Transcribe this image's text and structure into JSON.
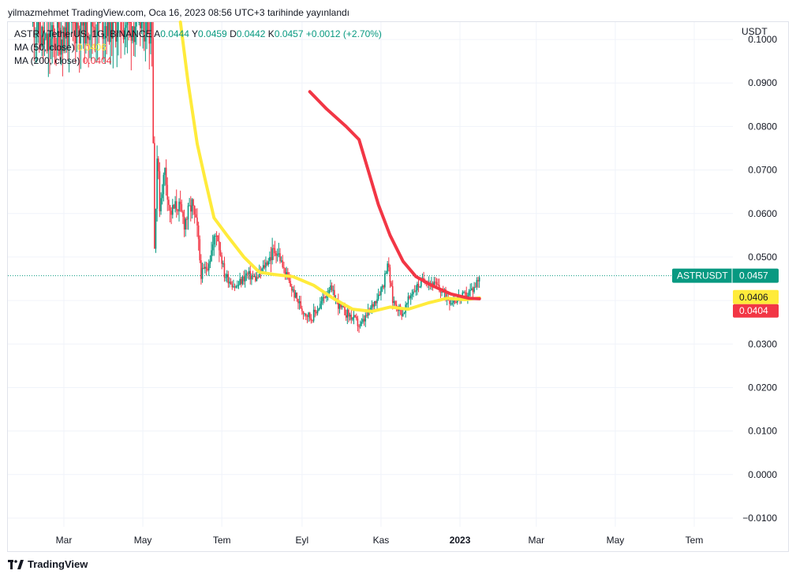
{
  "header": {
    "published": "yilmazmehmet TradingView.com, Oca 16, 2023 08:56 UTC+3 tarihinde yayınlandı"
  },
  "legend": {
    "symbol": "ASTR / TetherUS, 1G, BINANCE",
    "o_label": "A",
    "o_value": "0.0444",
    "h_label": "Y",
    "h_value": "0.0459",
    "l_label": "D",
    "l_value": "0.0442",
    "c_label": "K",
    "c_value": "0.0457",
    "change": "+0.0012 (+2.70%)",
    "ma50_label": "MA (50, close)",
    "ma50_value": "0.0406",
    "ma200_label": "MA (200, close)",
    "ma200_value": "0.0404"
  },
  "footer": {
    "brand": "TradingView"
  },
  "colors": {
    "up": "#089981",
    "down": "#f23645",
    "ma50": "#ffeb3b",
    "ma200": "#f23645",
    "grid": "#f0f3fa",
    "text": "#131722"
  },
  "chart_data": {
    "type": "line",
    "currency": "USDT",
    "ylim": [
      -0.012,
      0.104
    ],
    "y_ticks": [
      "0.1000",
      "0.0900",
      "0.0800",
      "0.0700",
      "0.0600",
      "0.0500",
      "0.0400",
      "0.0300",
      "0.0200",
      "0.0100",
      "0.0000",
      "−0.0100"
    ],
    "y_tick_values": [
      0.1,
      0.09,
      0.08,
      0.07,
      0.06,
      0.05,
      0.04,
      0.03,
      0.02,
      0.01,
      0.0,
      -0.01
    ],
    "x_ticks": [
      {
        "label": "Mar",
        "date": "2022-03-01",
        "bold": false
      },
      {
        "label": "May",
        "date": "2022-05-01",
        "bold": false
      },
      {
        "label": "Tem",
        "date": "2022-07-01",
        "bold": false
      },
      {
        "label": "Eyl",
        "date": "2022-09-01",
        "bold": false
      },
      {
        "label": "Kas",
        "date": "2022-11-01",
        "bold": false
      },
      {
        "label": "2023",
        "date": "2023-01-01",
        "bold": true
      },
      {
        "label": "Mar",
        "date": "2023-03-01",
        "bold": false
      },
      {
        "label": "May",
        "date": "2023-05-01",
        "bold": false
      },
      {
        "label": "Tem",
        "date": "2023-07-01",
        "bold": false
      }
    ],
    "last_price": {
      "label": "ASTRUSDT",
      "value": 0.0457,
      "text": "0.0457"
    },
    "ma50_tag": {
      "value": 0.0406,
      "text": "0.0406"
    },
    "ma200_tag": {
      "value": 0.0404,
      "text": "0.0404"
    },
    "price_series": [
      {
        "date": "2022-02-05",
        "value": 0.105
      },
      {
        "date": "2022-02-15",
        "value": 0.098
      },
      {
        "date": "2022-03-01",
        "value": 0.102
      },
      {
        "date": "2022-03-15",
        "value": 0.104
      },
      {
        "date": "2022-05-08",
        "value": 0.104
      },
      {
        "date": "2022-05-10",
        "value": 0.052
      },
      {
        "date": "2022-05-12",
        "value": 0.074
      },
      {
        "date": "2022-05-14",
        "value": 0.062
      },
      {
        "date": "2022-05-18",
        "value": 0.07
      },
      {
        "date": "2022-05-22",
        "value": 0.06
      },
      {
        "date": "2022-05-28",
        "value": 0.062
      },
      {
        "date": "2022-06-02",
        "value": 0.058
      },
      {
        "date": "2022-06-08",
        "value": 0.062
      },
      {
        "date": "2022-06-12",
        "value": 0.056
      },
      {
        "date": "2022-06-15",
        "value": 0.046
      },
      {
        "date": "2022-06-20",
        "value": 0.048
      },
      {
        "date": "2022-06-27",
        "value": 0.056
      },
      {
        "date": "2022-07-03",
        "value": 0.046
      },
      {
        "date": "2022-07-12",
        "value": 0.043
      },
      {
        "date": "2022-07-20",
        "value": 0.046
      },
      {
        "date": "2022-07-28",
        "value": 0.045
      },
      {
        "date": "2022-08-05",
        "value": 0.049
      },
      {
        "date": "2022-08-12",
        "value": 0.052
      },
      {
        "date": "2022-08-18",
        "value": 0.047
      },
      {
        "date": "2022-08-25",
        "value": 0.042
      },
      {
        "date": "2022-09-01",
        "value": 0.038
      },
      {
        "date": "2022-09-08",
        "value": 0.036
      },
      {
        "date": "2022-09-15",
        "value": 0.039
      },
      {
        "date": "2022-09-22",
        "value": 0.043
      },
      {
        "date": "2022-10-01",
        "value": 0.038
      },
      {
        "date": "2022-10-10",
        "value": 0.036
      },
      {
        "date": "2022-10-16",
        "value": 0.034
      },
      {
        "date": "2022-10-24",
        "value": 0.038
      },
      {
        "date": "2022-11-03",
        "value": 0.044
      },
      {
        "date": "2022-11-06",
        "value": 0.049
      },
      {
        "date": "2022-11-10",
        "value": 0.04
      },
      {
        "date": "2022-11-18",
        "value": 0.037
      },
      {
        "date": "2022-11-25",
        "value": 0.042
      },
      {
        "date": "2022-12-05",
        "value": 0.045
      },
      {
        "date": "2022-12-15",
        "value": 0.043
      },
      {
        "date": "2022-12-25",
        "value": 0.04
      },
      {
        "date": "2023-01-05",
        "value": 0.041
      },
      {
        "date": "2023-01-12",
        "value": 0.043
      },
      {
        "date": "2023-01-16",
        "value": 0.0457
      }
    ],
    "series": [
      {
        "name": "MA (50, close)",
        "color": "#ffeb3b",
        "points": [
          {
            "date": "2022-05-30",
            "value": 0.104
          },
          {
            "date": "2022-06-05",
            "value": 0.09
          },
          {
            "date": "2022-06-12",
            "value": 0.076
          },
          {
            "date": "2022-06-18",
            "value": 0.068
          },
          {
            "date": "2022-06-25",
            "value": 0.059
          },
          {
            "date": "2022-07-05",
            "value": 0.055
          },
          {
            "date": "2022-07-18",
            "value": 0.05
          },
          {
            "date": "2022-07-30",
            "value": 0.0465
          },
          {
            "date": "2022-08-10",
            "value": 0.046
          },
          {
            "date": "2022-08-25",
            "value": 0.0455
          },
          {
            "date": "2022-09-10",
            "value": 0.0435
          },
          {
            "date": "2022-09-25",
            "value": 0.0405
          },
          {
            "date": "2022-10-10",
            "value": 0.038
          },
          {
            "date": "2022-10-25",
            "value": 0.0375
          },
          {
            "date": "2022-11-08",
            "value": 0.0385
          },
          {
            "date": "2022-11-22",
            "value": 0.038
          },
          {
            "date": "2022-12-08",
            "value": 0.0395
          },
          {
            "date": "2022-12-22",
            "value": 0.0405
          },
          {
            "date": "2023-01-05",
            "value": 0.0402
          },
          {
            "date": "2023-01-16",
            "value": 0.0406
          }
        ]
      },
      {
        "name": "MA (200, close)",
        "color": "#f23645",
        "points": [
          {
            "date": "2022-09-07",
            "value": 0.088
          },
          {
            "date": "2022-09-20",
            "value": 0.084
          },
          {
            "date": "2022-10-05",
            "value": 0.08
          },
          {
            "date": "2022-10-15",
            "value": 0.077
          },
          {
            "date": "2022-10-22",
            "value": 0.07
          },
          {
            "date": "2022-10-30",
            "value": 0.062
          },
          {
            "date": "2022-11-08",
            "value": 0.055
          },
          {
            "date": "2022-11-18",
            "value": 0.049
          },
          {
            "date": "2022-11-28",
            "value": 0.0455
          },
          {
            "date": "2022-12-10",
            "value": 0.0435
          },
          {
            "date": "2022-12-25",
            "value": 0.0415
          },
          {
            "date": "2023-01-08",
            "value": 0.0405
          },
          {
            "date": "2023-01-16",
            "value": 0.0404
          }
        ]
      }
    ]
  }
}
